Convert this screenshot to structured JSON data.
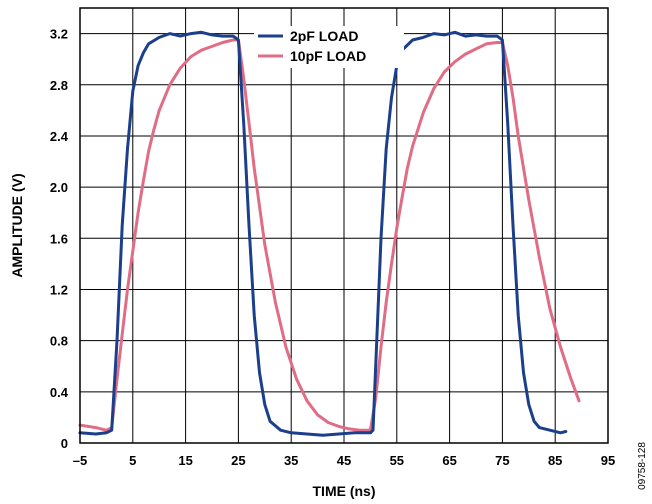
{
  "chart_data": {
    "type": "line",
    "xlabel": "TIME (ns)",
    "ylabel": "AMPLITUDE (V)",
    "xlim": [
      -5,
      95
    ],
    "ylim": [
      0,
      3.4
    ],
    "x_ticks": [
      "–5",
      "5",
      "15",
      "25",
      "35",
      "45",
      "55",
      "65",
      "75",
      "85",
      "95"
    ],
    "x_tick_values": [
      -5,
      5,
      15,
      25,
      35,
      45,
      55,
      65,
      75,
      85,
      95
    ],
    "y_ticks": [
      "0",
      "0.4",
      "0.8",
      "1.2",
      "1.6",
      "2.0",
      "2.4",
      "2.8",
      "3.2"
    ],
    "y_tick_values": [
      0,
      0.4,
      0.8,
      1.2,
      1.6,
      2.0,
      2.4,
      2.8,
      3.2
    ],
    "grid": true,
    "legend_position": "top-center",
    "figure_id": "09758-128",
    "series": [
      {
        "name": "2pF LOAD",
        "color": "#1b3f8b",
        "points": [
          [
            -5,
            0.08
          ],
          [
            -2,
            0.07
          ],
          [
            0,
            0.08
          ],
          [
            1,
            0.1
          ],
          [
            2,
            0.8
          ],
          [
            3,
            1.7
          ],
          [
            4,
            2.3
          ],
          [
            5,
            2.75
          ],
          [
            6,
            2.95
          ],
          [
            7,
            3.05
          ],
          [
            8,
            3.12
          ],
          [
            10,
            3.17
          ],
          [
            12,
            3.2
          ],
          [
            14,
            3.18
          ],
          [
            16,
            3.2
          ],
          [
            18,
            3.21
          ],
          [
            20,
            3.19
          ],
          [
            22,
            3.18
          ],
          [
            24,
            3.18
          ],
          [
            25,
            3.15
          ],
          [
            26,
            2.5
          ],
          [
            27,
            1.7
          ],
          [
            28,
            1.0
          ],
          [
            29,
            0.55
          ],
          [
            30,
            0.3
          ],
          [
            31,
            0.17
          ],
          [
            33,
            0.1
          ],
          [
            35,
            0.08
          ],
          [
            38,
            0.07
          ],
          [
            41,
            0.06
          ],
          [
            44,
            0.07
          ],
          [
            47,
            0.08
          ],
          [
            50,
            0.08
          ],
          [
            50.5,
            0.1
          ],
          [
            51,
            0.6
          ],
          [
            52,
            1.6
          ],
          [
            53,
            2.3
          ],
          [
            54,
            2.7
          ],
          [
            55,
            2.95
          ],
          [
            56,
            3.07
          ],
          [
            58,
            3.15
          ],
          [
            60,
            3.17
          ],
          [
            62,
            3.2
          ],
          [
            64,
            3.19
          ],
          [
            66,
            3.21
          ],
          [
            68,
            3.18
          ],
          [
            70,
            3.19
          ],
          [
            72,
            3.18
          ],
          [
            74,
            3.18
          ],
          [
            75,
            3.15
          ],
          [
            76,
            2.5
          ],
          [
            77,
            1.7
          ],
          [
            78,
            1.0
          ],
          [
            79,
            0.55
          ],
          [
            80,
            0.3
          ],
          [
            81,
            0.17
          ],
          [
            82,
            0.12
          ],
          [
            84,
            0.1
          ],
          [
            86,
            0.08
          ],
          [
            87,
            0.09
          ]
        ]
      },
      {
        "name": "10pF LOAD",
        "color": "#e06c85",
        "points": [
          [
            -5,
            0.14
          ],
          [
            -2,
            0.12
          ],
          [
            0,
            0.1
          ],
          [
            1,
            0.12
          ],
          [
            2,
            0.5
          ],
          [
            3,
            0.85
          ],
          [
            4,
            1.2
          ],
          [
            5,
            1.5
          ],
          [
            6,
            1.8
          ],
          [
            7,
            2.05
          ],
          [
            8,
            2.28
          ],
          [
            9,
            2.45
          ],
          [
            10,
            2.6
          ],
          [
            12,
            2.8
          ],
          [
            14,
            2.93
          ],
          [
            16,
            3.02
          ],
          [
            18,
            3.07
          ],
          [
            20,
            3.1
          ],
          [
            22,
            3.13
          ],
          [
            24,
            3.15
          ],
          [
            25,
            3.15
          ],
          [
            26,
            2.85
          ],
          [
            27,
            2.5
          ],
          [
            28,
            2.15
          ],
          [
            29,
            1.85
          ],
          [
            30,
            1.55
          ],
          [
            32,
            1.1
          ],
          [
            34,
            0.75
          ],
          [
            36,
            0.5
          ],
          [
            38,
            0.33
          ],
          [
            40,
            0.22
          ],
          [
            42,
            0.16
          ],
          [
            44,
            0.13
          ],
          [
            46,
            0.11
          ],
          [
            48,
            0.1
          ],
          [
            50,
            0.1
          ],
          [
            51,
            0.35
          ],
          [
            52,
            0.75
          ],
          [
            53,
            1.1
          ],
          [
            54,
            1.4
          ],
          [
            55,
            1.68
          ],
          [
            56,
            1.92
          ],
          [
            57,
            2.15
          ],
          [
            58,
            2.32
          ],
          [
            60,
            2.58
          ],
          [
            62,
            2.77
          ],
          [
            64,
            2.9
          ],
          [
            66,
            2.98
          ],
          [
            68,
            3.04
          ],
          [
            70,
            3.08
          ],
          [
            72,
            3.12
          ],
          [
            74,
            3.13
          ],
          [
            75,
            3.13
          ],
          [
            76,
            2.95
          ],
          [
            77,
            2.7
          ],
          [
            78,
            2.4
          ],
          [
            79,
            2.15
          ],
          [
            80,
            1.9
          ],
          [
            82,
            1.45
          ],
          [
            84,
            1.05
          ],
          [
            86,
            0.75
          ],
          [
            88,
            0.5
          ],
          [
            89.5,
            0.33
          ]
        ]
      }
    ]
  }
}
